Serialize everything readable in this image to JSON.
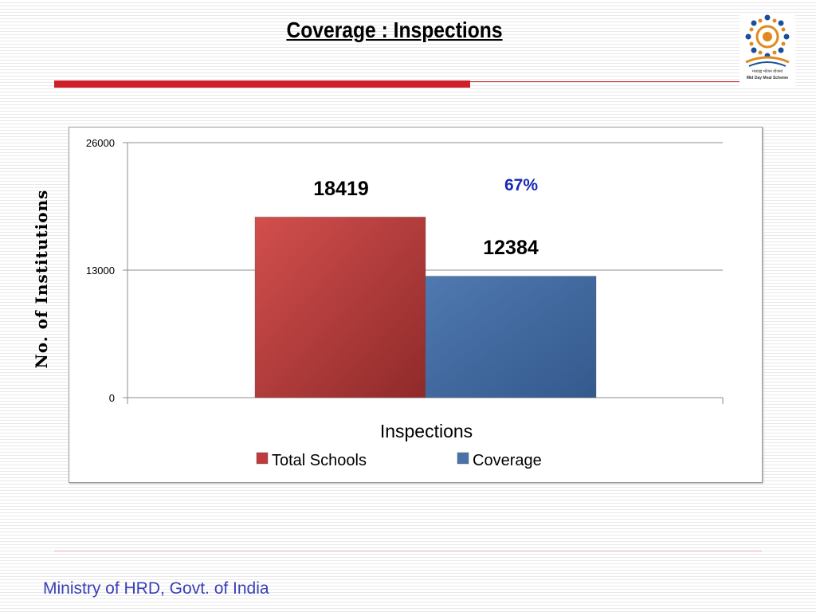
{
  "slide": {
    "title": "Coverage : Inspections",
    "footer": "Ministry of HRD, Govt. of India",
    "logo_line1": "मध्याह्न भोजन योजना",
    "logo_line2": "Mid Day Meal Scheme"
  },
  "colors": {
    "accent_red": "#cc1f27",
    "total_schools": "#c0393b",
    "coverage": "#4a72a8",
    "percent_label": "#1a2ab8",
    "footer_text": "#3a3fb6"
  },
  "chart_data": {
    "type": "bar",
    "categories": [
      "Inspections"
    ],
    "series": [
      {
        "name": "Total Schools",
        "values": [
          18419
        ]
      },
      {
        "name": "Coverage",
        "values": [
          12384
        ]
      }
    ],
    "data_labels": [
      "18419",
      "12384"
    ],
    "annotation": "67%",
    "xlabel": "Inspections",
    "ylabel": "No. of Institutions",
    "ylim": [
      0,
      26000
    ],
    "yticks": [
      0,
      13000,
      26000
    ],
    "ytick_labels": [
      "0",
      "13000",
      "26000"
    ],
    "grid": true,
    "legend_position": "bottom"
  }
}
